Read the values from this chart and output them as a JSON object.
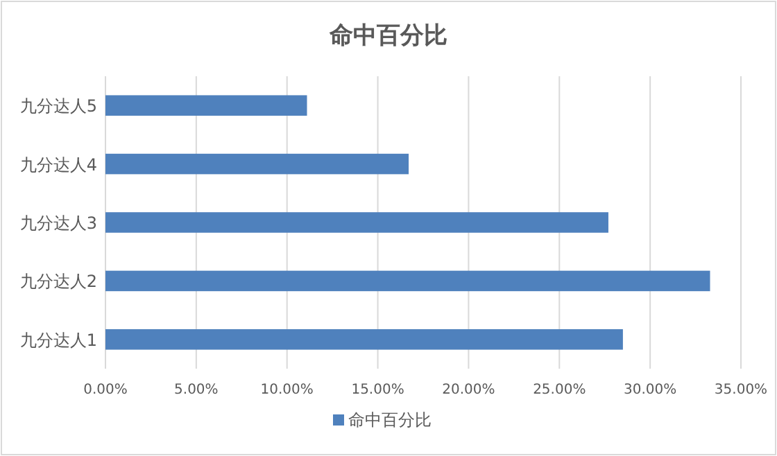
{
  "chart_data": {
    "type": "bar",
    "orientation": "horizontal",
    "title": "命中百分比",
    "categories": [
      "九分达人5",
      "九分达人4",
      "九分达人3",
      "九分达人2",
      "九分达人1"
    ],
    "series": [
      {
        "name": "命中百分比",
        "color": "#4f81bd",
        "values": [
          11.1,
          16.7,
          27.7,
          33.3,
          28.5
        ]
      }
    ],
    "xlim": [
      0,
      35
    ],
    "xticks": [
      {
        "value": 0,
        "label": "0.00%"
      },
      {
        "value": 5,
        "label": "5.00%"
      },
      {
        "value": 10,
        "label": "10.00%"
      },
      {
        "value": 15,
        "label": "15.00%"
      },
      {
        "value": 20,
        "label": "20.00%"
      },
      {
        "value": 25,
        "label": "25.00%"
      },
      {
        "value": 30,
        "label": "30.00%"
      },
      {
        "value": 35,
        "label": "35.00%"
      }
    ],
    "grid": "x",
    "legend": "bottom"
  }
}
